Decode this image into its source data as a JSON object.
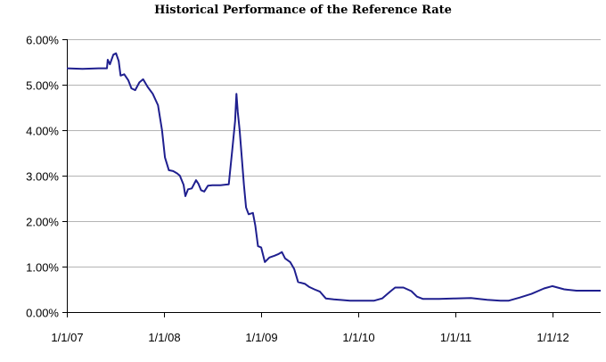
{
  "chart_data": {
    "type": "line",
    "title": "Historical Performance of the Reference Rate",
    "xlabel": "",
    "ylabel": "",
    "ylim": [
      0,
      6
    ],
    "y_ticks": [
      "0.00%",
      "1.00%",
      "2.00%",
      "3.00%",
      "4.00%",
      "5.00%",
      "6.00%"
    ],
    "x_ticks": [
      "1/1/07",
      "1/1/08",
      "1/1/09",
      "1/1/10",
      "1/1/11",
      "1/1/12"
    ],
    "xlim": [
      "2007-01-01",
      "2012-07-01"
    ],
    "grid": true,
    "legend": "none",
    "series_color": "#1f1f8f",
    "series": [
      {
        "points": [
          [
            "2007-01-01",
            5.36
          ],
          [
            "2007-03-01",
            5.35
          ],
          [
            "2007-05-01",
            5.36
          ],
          [
            "2007-06-01",
            5.36
          ],
          [
            "2007-06-04",
            5.55
          ],
          [
            "2007-06-12",
            5.45
          ],
          [
            "2007-06-25",
            5.66
          ],
          [
            "2007-07-05",
            5.69
          ],
          [
            "2007-07-15",
            5.52
          ],
          [
            "2007-07-22",
            5.2
          ],
          [
            "2007-08-05",
            5.23
          ],
          [
            "2007-08-20",
            5.1
          ],
          [
            "2007-09-01",
            4.92
          ],
          [
            "2007-09-15",
            4.88
          ],
          [
            "2007-10-01",
            5.05
          ],
          [
            "2007-10-15",
            5.12
          ],
          [
            "2007-11-01",
            4.95
          ],
          [
            "2007-11-20",
            4.8
          ],
          [
            "2007-12-10",
            4.55
          ],
          [
            "2007-12-25",
            4.0
          ],
          [
            "2008-01-05",
            3.4
          ],
          [
            "2008-01-20",
            3.12
          ],
          [
            "2008-02-05",
            3.1
          ],
          [
            "2008-02-20",
            3.05
          ],
          [
            "2008-03-01",
            3.0
          ],
          [
            "2008-03-15",
            2.8
          ],
          [
            "2008-03-22",
            2.55
          ],
          [
            "2008-04-01",
            2.7
          ],
          [
            "2008-04-15",
            2.72
          ],
          [
            "2008-05-01",
            2.9
          ],
          [
            "2008-05-10",
            2.82
          ],
          [
            "2008-05-20",
            2.68
          ],
          [
            "2008-06-01",
            2.65
          ],
          [
            "2008-06-15",
            2.78
          ],
          [
            "2008-07-01",
            2.79
          ],
          [
            "2008-08-01",
            2.79
          ],
          [
            "2008-09-01",
            2.81
          ],
          [
            "2008-09-15",
            3.6
          ],
          [
            "2008-09-25",
            4.2
          ],
          [
            "2008-09-30",
            4.8
          ],
          [
            "2008-10-05",
            4.4
          ],
          [
            "2008-10-12",
            4.0
          ],
          [
            "2008-10-20",
            3.4
          ],
          [
            "2008-10-28",
            2.8
          ],
          [
            "2008-11-05",
            2.3
          ],
          [
            "2008-11-15",
            2.15
          ],
          [
            "2008-12-01",
            2.18
          ],
          [
            "2008-12-10",
            1.9
          ],
          [
            "2008-12-20",
            1.45
          ],
          [
            "2009-01-01",
            1.42
          ],
          [
            "2009-01-15",
            1.1
          ],
          [
            "2009-02-01",
            1.2
          ],
          [
            "2009-02-20",
            1.24
          ],
          [
            "2009-03-05",
            1.27
          ],
          [
            "2009-03-20",
            1.32
          ],
          [
            "2009-04-01",
            1.18
          ],
          [
            "2009-04-20",
            1.1
          ],
          [
            "2009-05-05",
            0.95
          ],
          [
            "2009-05-20",
            0.66
          ],
          [
            "2009-06-15",
            0.62
          ],
          [
            "2009-07-01",
            0.55
          ],
          [
            "2009-07-20",
            0.5
          ],
          [
            "2009-08-10",
            0.45
          ],
          [
            "2009-09-01",
            0.3
          ],
          [
            "2009-10-01",
            0.28
          ],
          [
            "2009-12-01",
            0.25
          ],
          [
            "2010-01-01",
            0.25
          ],
          [
            "2010-03-01",
            0.25
          ],
          [
            "2010-04-01",
            0.3
          ],
          [
            "2010-05-01",
            0.45
          ],
          [
            "2010-05-20",
            0.54
          ],
          [
            "2010-06-20",
            0.54
          ],
          [
            "2010-07-20",
            0.46
          ],
          [
            "2010-08-10",
            0.34
          ],
          [
            "2010-09-01",
            0.29
          ],
          [
            "2010-11-01",
            0.29
          ],
          [
            "2011-01-01",
            0.3
          ],
          [
            "2011-03-01",
            0.31
          ],
          [
            "2011-05-01",
            0.27
          ],
          [
            "2011-06-20",
            0.25
          ],
          [
            "2011-07-20",
            0.25
          ],
          [
            "2011-09-01",
            0.32
          ],
          [
            "2011-10-15",
            0.4
          ],
          [
            "2011-12-01",
            0.52
          ],
          [
            "2012-01-01",
            0.57
          ],
          [
            "2012-02-15",
            0.5
          ],
          [
            "2012-04-01",
            0.47
          ],
          [
            "2012-07-01",
            0.47
          ]
        ]
      }
    ]
  }
}
